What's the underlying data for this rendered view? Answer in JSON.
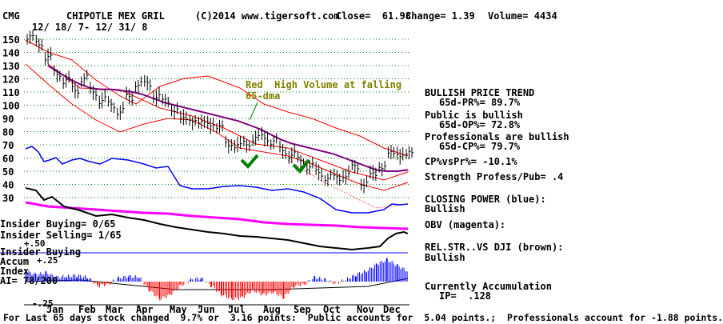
{
  "header": {
    "ticker": "CMG",
    "company": "CHIPOTLE MEX GRIL",
    "copyright": "(C)2014 www.tigersoft.com",
    "close": "Close=  61.98",
    "change": "Change= 1.39",
    "volume": "Volume= 4434",
    "date_range": "12/ 18/ 7- 12/ 31/ 8"
  },
  "annotation": {
    "line1": "Red  High Volume at falling",
    "line2": "65-dma"
  },
  "left_labels": {
    "insider_buying_count": "Insider Buying= 0/65",
    "insider_selling_count": "Insider Selling= 1/65",
    "plus50": "+.50",
    "insider_buying": "Insider Buying",
    "accum": "Accum",
    "plus25": "+.25",
    "index": "Index",
    "ai": "AI= 78/200",
    "minus25": "-.25"
  },
  "right_panel": {
    "l1": "BULLISH PRICE TREND",
    "l2": "65d-PR%= 89.7%",
    "l3": "Public is bullish",
    "l4": "65d-OP%= 72.8%",
    "l5": "Professionals are bullish",
    "l6": "65d-CP%= 79.7%",
    "l7": "CP%vsPr%= -10.1%",
    "l8": "Strength Profess/Pub= .4",
    "l9": "CLOSING POWER (blue):",
    "l10": "Bullish",
    "l11": "OBV (magenta):",
    "l12": "REL.STR..VS DJI (brown):",
    "l13": "Bullish",
    "l14": "Currently Accumulation",
    "l15": "IP=  .128"
  },
  "footer": "For Last 65 days stock changed  9.7% or  3.16 points:  Public accounts for  5.04 points.;  Professionals account for -1.88 points.",
  "colors": {
    "price": "#000000",
    "closing_power": "#0000ff",
    "obv": "#ff00ff",
    "ma": "#800080",
    "bands": "#ff0000",
    "check": "#008000",
    "accum_pos": "#0000ff",
    "accum_neg": "#ff0000",
    "grid": "#008000"
  },
  "chart_data": {
    "type": "line",
    "yticks": [
      150,
      140,
      130,
      120,
      110,
      100,
      90,
      80,
      70,
      60,
      50,
      40,
      30
    ],
    "ylim": [
      25,
      155
    ],
    "months": [
      "Jan",
      "Feb",
      "Mar",
      "Apr",
      "May",
      "Jun",
      "Jul",
      "Aug",
      "Sep",
      "Oct",
      "Nov",
      "Dec"
    ],
    "price": [
      150,
      148,
      135,
      125,
      118,
      112,
      120,
      110,
      104,
      100,
      96,
      105,
      117,
      115,
      108,
      102,
      98,
      88,
      90,
      85,
      87,
      82,
      72,
      68,
      72,
      74,
      76,
      72,
      66,
      62,
      58,
      54,
      48,
      46,
      44,
      48,
      52,
      42,
      46,
      55,
      62,
      64,
      62
    ],
    "ma65": [
      130,
      125,
      120,
      116,
      113,
      112,
      112,
      111,
      110,
      108,
      105,
      102,
      100,
      98,
      96,
      94,
      92,
      90,
      88,
      85,
      82,
      78,
      74,
      71,
      69,
      67,
      65,
      63,
      60,
      57,
      54,
      51,
      50,
      50,
      51
    ],
    "accum_index": [
      0.12,
      0.08,
      0.1,
      0.05,
      0.06,
      0.07,
      0.05,
      -0.05,
      -0.03,
      0.04,
      0.06,
      0.05,
      -0.1,
      -0.2,
      -0.15,
      -0.05,
      0.02,
      0.04,
      -0.05,
      -0.15,
      -0.2,
      -0.18,
      -0.1,
      -0.15,
      -0.12,
      -0.18,
      -0.05,
      -0.03,
      0.05,
      0.02,
      -0.02,
      0.02,
      0.08,
      0.12,
      0.2,
      0.25,
      0.18,
      0.12
    ]
  }
}
